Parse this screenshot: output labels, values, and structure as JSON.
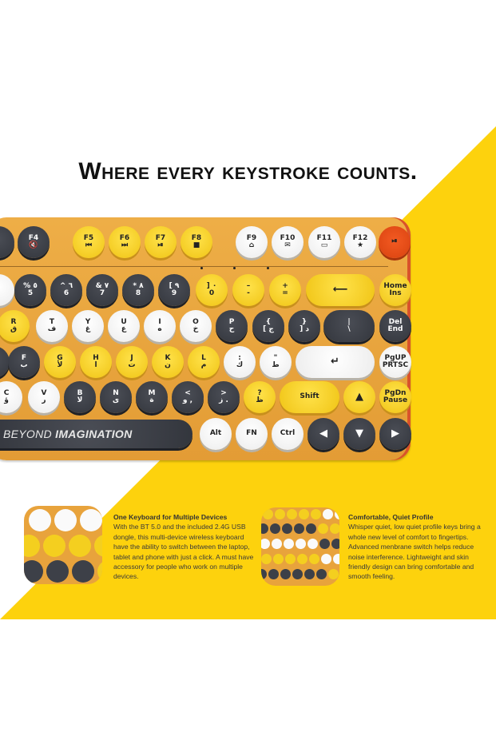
{
  "colors": {
    "accent_yellow": "#fdd20d",
    "keyboard_body": "#e9a33b",
    "key_yellow": "#f4cf1f",
    "key_dark": "#3d4048",
    "key_white": "#fafafa",
    "power_key": "#e8501c"
  },
  "headline": "Where every keystroke counts.",
  "keyboard": {
    "brand_bar": {
      "light": "BEYOND ",
      "bold": "IMAGINATION"
    },
    "rows": [
      [
        {
          "m": "",
          "s": "",
          "c": "d"
        },
        {
          "m": "F4",
          "s": "🔇",
          "c": "d"
        },
        {
          "m": "F5",
          "s": "⏮",
          "c": "y"
        },
        {
          "m": "F6",
          "s": "⏭",
          "c": "y"
        },
        {
          "m": "F7",
          "s": "⏯",
          "c": "y"
        },
        {
          "m": "F8",
          "s": "■",
          "c": "y"
        },
        {
          "m": "F9",
          "s": "⌂",
          "c": "w"
        },
        {
          "m": "F10",
          "s": "✉",
          "c": "w"
        },
        {
          "m": "F11",
          "s": "▭",
          "c": "w"
        },
        {
          "m": "F12",
          "s": "★",
          "c": "w"
        },
        {
          "m": "⏯",
          "s": "",
          "c": "o",
          "icon": "play-pause-icon"
        }
      ],
      [
        {
          "m": "",
          "s": "",
          "c": "w"
        },
        {
          "m": "% ٥",
          "s": "5",
          "c": "d"
        },
        {
          "m": "^ ٦",
          "s": "6",
          "c": "d"
        },
        {
          "m": "& ٧",
          "s": "7",
          "c": "d"
        },
        {
          "m": "* ٨",
          "s": "8",
          "c": "d"
        },
        {
          "m": "[ ٩",
          "s": "9",
          "c": "d"
        },
        {
          "m": "] ٠",
          "s": "0",
          "c": "y"
        },
        {
          "m": "–",
          "s": "-",
          "c": "y"
        },
        {
          "m": "+",
          "s": "=",
          "c": "y"
        },
        {
          "m": "⟵",
          "s": "",
          "c": "y",
          "icon": "backspace-arrow-icon"
        },
        {
          "m": "Home",
          "s": "Ins",
          "c": "y"
        }
      ],
      [
        {
          "m": "R",
          "s": "ق",
          "c": "y"
        },
        {
          "m": "T",
          "s": "ف",
          "c": "w"
        },
        {
          "m": "Y",
          "s": "غ",
          "c": "w"
        },
        {
          "m": "U",
          "s": "ع",
          "c": "w"
        },
        {
          "m": "I",
          "s": "ه",
          "c": "w"
        },
        {
          "m": "O",
          "s": "خ",
          "c": "w"
        },
        {
          "m": "P",
          "s": "ح",
          "c": "d"
        },
        {
          "m": "{",
          "s": "[ ج",
          "c": "d"
        },
        {
          "m": "}",
          "s": "] د",
          "c": "d"
        },
        {
          "m": "|",
          "s": "\\",
          "c": "d"
        },
        {
          "m": "Del",
          "s": "End",
          "c": "d"
        }
      ],
      [
        {
          "m": "",
          "s": "",
          "c": "d"
        },
        {
          "m": "F",
          "s": "ب",
          "c": "d"
        },
        {
          "m": "G",
          "s": "لأ",
          "c": "y"
        },
        {
          "m": "H",
          "s": "ا",
          "c": "y"
        },
        {
          "m": "J",
          "s": "ت",
          "c": "y"
        },
        {
          "m": "K",
          "s": "ن",
          "c": "y"
        },
        {
          "m": "L",
          "s": "م",
          "c": "y"
        },
        {
          "m": ":",
          "s": "ك",
          "c": "w"
        },
        {
          "m": "\"",
          "s": "ط",
          "c": "w"
        },
        {
          "m": "↵",
          "s": "",
          "c": "w",
          "icon": "enter-arrow-icon"
        },
        {
          "m": "PgUP",
          "s": "PRTSC",
          "c": "w"
        }
      ],
      [
        {
          "m": "C",
          "s": "ؤ",
          "c": "w"
        },
        {
          "m": "V",
          "s": "ر",
          "c": "w"
        },
        {
          "m": "B",
          "s": "لا",
          "c": "d"
        },
        {
          "m": "N",
          "s": "ى",
          "c": "d"
        },
        {
          "m": "M",
          "s": "ة",
          "c": "d"
        },
        {
          "m": "<",
          "s": "و ,",
          "c": "d"
        },
        {
          "m": ">",
          "s": "ز .",
          "c": "d"
        },
        {
          "m": "?",
          "s": "ظ",
          "c": "y"
        },
        {
          "m": "Shift",
          "s": "",
          "c": "y"
        },
        {
          "m": "▲",
          "s": "",
          "c": "y",
          "icon": "arrow-up-icon"
        },
        {
          "m": "PgDn",
          "s": "Pause",
          "c": "y"
        }
      ],
      [
        {
          "m": "",
          "s": "",
          "c": "d",
          "bar": true
        },
        {
          "m": "Alt",
          "s": "",
          "c": "w"
        },
        {
          "m": "FN",
          "s": "",
          "c": "w"
        },
        {
          "m": "Ctrl",
          "s": "",
          "c": "w"
        },
        {
          "m": "◀",
          "s": "",
          "c": "d",
          "icon": "arrow-left-icon"
        },
        {
          "m": "▼",
          "s": "",
          "c": "d",
          "icon": "arrow-down-icon"
        },
        {
          "m": "▶",
          "s": "",
          "c": "d",
          "icon": "arrow-right-icon"
        }
      ]
    ]
  },
  "features": [
    {
      "title": "One Keyboard for Multiple Devices",
      "body": "With the BT 5.0 and the included 2.4G USB dongle, this multi-device wireless keyboard have the ability to switch between the laptop, tablet and phone with just a click. A must have accessory for people who work on multiple devices."
    },
    {
      "title": "Comfortable, Quiet Profile",
      "body": "Whisper quiet, low quiet profile keys bring a whole new level of comfort to fingertips. Advanced menbrane switch helps reduce noise interference. Lightweight and skin friendly design can bring comfortable and smooth feeling."
    }
  ]
}
